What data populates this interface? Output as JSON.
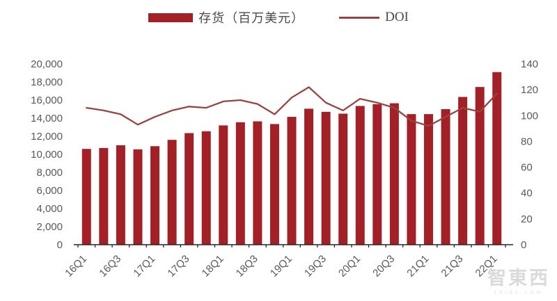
{
  "watermark": {
    "logo": "智東西",
    "site": "zhidx.com"
  },
  "chart_data": {
    "type": "bar",
    "subtype": "bar+line combo, dual axis",
    "title": "",
    "legend_position": "top",
    "grid": false,
    "categories": [
      "16Q1",
      "16Q2",
      "16Q3",
      "16Q4",
      "17Q1",
      "17Q2",
      "17Q3",
      "17Q4",
      "18Q1",
      "18Q2",
      "18Q3",
      "18Q4",
      "19Q1",
      "19Q2",
      "19Q3",
      "19Q4",
      "20Q1",
      "20Q2",
      "20Q3",
      "20Q4",
      "21Q1",
      "21Q2",
      "21Q3",
      "21Q4",
      "22Q1"
    ],
    "x_tick_labels": [
      "16Q1",
      "16Q3",
      "17Q1",
      "17Q3",
      "18Q1",
      "18Q3",
      "19Q1",
      "19Q3",
      "20Q1",
      "20Q3",
      "21Q1",
      "21Q3",
      "22Q1"
    ],
    "series": [
      {
        "name": "存货（百万美元）",
        "type": "bar",
        "axis": "left",
        "color": "#a32126",
        "values": [
          10600,
          10700,
          11000,
          10550,
          10900,
          11600,
          12350,
          12550,
          13200,
          13550,
          13650,
          13350,
          14150,
          15050,
          14700,
          14500,
          15350,
          15550,
          15650,
          14450,
          14450,
          15000,
          16350,
          17450,
          19100
        ]
      },
      {
        "name": "DOI",
        "type": "line",
        "axis": "right",
        "color": "#99433e",
        "values": [
          106,
          104,
          101,
          93,
          99,
          104,
          107,
          106,
          111,
          112,
          109,
          101,
          114,
          122,
          110,
          104,
          113,
          110,
          106,
          96,
          92,
          99,
          106,
          103,
          117
        ]
      }
    ],
    "left_axis": {
      "min": 0,
      "max": 20000,
      "step": 2000,
      "tick_labels": [
        "0",
        "2,000",
        "4,000",
        "6,000",
        "8,000",
        "10,000",
        "12,000",
        "14,000",
        "16,000",
        "18,000",
        "20,000"
      ]
    },
    "right_axis": {
      "min": 0,
      "max": 140,
      "step": 20,
      "tick_labels": [
        "0",
        "20",
        "40",
        "60",
        "80",
        "100",
        "120",
        "140"
      ]
    },
    "axis_text_color": "#595959",
    "axis_line_color": "#262626"
  }
}
